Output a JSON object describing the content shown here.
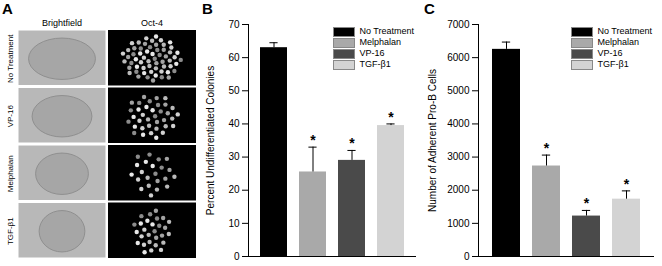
{
  "panel_a": {
    "label": "A",
    "columns": [
      "Brightfield",
      "Oct-4"
    ],
    "rows": [
      "No Treatment",
      "VP-16",
      "Melphalan",
      "TGF-β1"
    ]
  },
  "chart_data": [
    {
      "type": "bar",
      "title": "B",
      "y_label": "Percent Undifferentiated Colonies",
      "categories": [
        "No Treatment",
        "Melphalan",
        "VP-16",
        "TGF-β1"
      ],
      "values": [
        63,
        25.5,
        29,
        39.5
      ],
      "errors": [
        1.5,
        7.5,
        3,
        0.5
      ],
      "colors": [
        "#000000",
        "#a9a9a9",
        "#4a4a4a",
        "#d3d3d3"
      ],
      "ylim": [
        0,
        70
      ],
      "yticks": [
        0,
        10,
        20,
        30,
        40,
        50,
        60,
        70
      ],
      "tick_labels": "y",
      "legend": "top-right",
      "annotations": [
        {
          "category": "Melphalan",
          "text": "*"
        },
        {
          "category": "VP-16",
          "text": "*"
        },
        {
          "category": "TGF-β1",
          "text": "*"
        }
      ]
    },
    {
      "type": "bar",
      "title": "C",
      "y_label": "Number of Adherent Pro-B Cells",
      "categories": [
        "No Treatment",
        "Melphalan",
        "VP-16",
        "TGF-β1"
      ],
      "values": [
        6250,
        2730,
        1220,
        1730
      ],
      "errors": [
        220,
        330,
        170,
        250
      ],
      "colors": [
        "#000000",
        "#a9a9a9",
        "#4a4a4a",
        "#d3d3d3"
      ],
      "ylim": [
        0,
        7000
      ],
      "yticks": [
        0,
        1000,
        2000,
        3000,
        4000,
        5000,
        6000,
        7000
      ],
      "tick_labels": "y",
      "legend": "top-right",
      "annotations": [
        {
          "category": "Melphalan",
          "text": "*"
        },
        {
          "category": "VP-16",
          "text": "*"
        },
        {
          "category": "TGF-β1",
          "text": "*"
        }
      ]
    }
  ]
}
